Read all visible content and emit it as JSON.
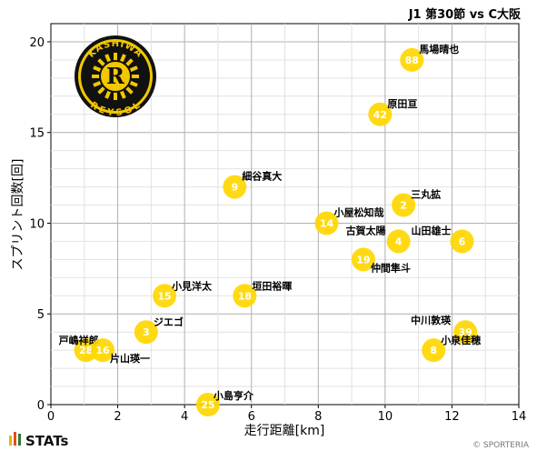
{
  "chart_data": {
    "type": "scatter",
    "title": "J1 第30節 vs C大阪",
    "xlabel": "走行距離[km]",
    "ylabel": "スプリント回数[回]",
    "xlim": [
      0,
      14
    ],
    "ylim": [
      0,
      21
    ],
    "xticks": [
      0,
      2,
      4,
      6,
      8,
      10,
      12,
      14
    ],
    "yticks": [
      0,
      5,
      10,
      15,
      20
    ],
    "grid": true,
    "marker_color": "#FFD700",
    "points": [
      {
        "number": "88",
        "name": "馬場晴也",
        "x": 10.8,
        "y": 19
      },
      {
        "number": "42",
        "name": "原田亘",
        "x": 9.85,
        "y": 16
      },
      {
        "number": "9",
        "name": "細谷真大",
        "x": 5.5,
        "y": 12
      },
      {
        "number": "2",
        "name": "三丸拡",
        "x": 10.55,
        "y": 11
      },
      {
        "number": "14",
        "name": "小屋松知哉",
        "x": 8.25,
        "y": 10
      },
      {
        "number": "4",
        "name": "古賀太陽",
        "x": 10.4,
        "y": 9
      },
      {
        "number": "6",
        "name": "山田雄士",
        "x": 12.3,
        "y": 9
      },
      {
        "number": "19",
        "name": "仲間隼斗",
        "x": 9.35,
        "y": 8
      },
      {
        "number": "15",
        "name": "小見洋太",
        "x": 3.4,
        "y": 6
      },
      {
        "number": "18",
        "name": "垣田裕暉",
        "x": 5.8,
        "y": 6
      },
      {
        "number": "3",
        "name": "ジエゴ",
        "x": 2.85,
        "y": 4
      },
      {
        "number": "39",
        "name": "中川敦瑛",
        "x": 12.4,
        "y": 4
      },
      {
        "number": "28",
        "name": "戸嶋祥郎",
        "x": 1.05,
        "y": 3
      },
      {
        "number": "16",
        "name": "片山瑛一",
        "x": 1.55,
        "y": 3
      },
      {
        "number": "8",
        "name": "小泉佳穂",
        "x": 11.45,
        "y": 3
      },
      {
        "number": "25",
        "name": "小島亨介",
        "x": 4.7,
        "y": 0
      }
    ]
  },
  "logo": {
    "top_text": "KASHIWA",
    "bottom_text": "REYSOL",
    "letter": "R"
  },
  "footer": {
    "brand": "STATs",
    "copyright": "© SPORTERIA"
  }
}
